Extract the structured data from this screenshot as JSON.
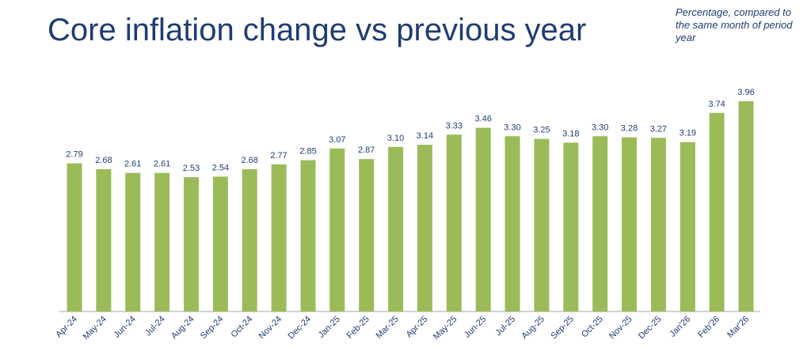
{
  "title": "Core inflation change vs previous year",
  "note": "Percentage, compared to the same month of period year",
  "colors": {
    "bar": "#9bbb59",
    "text": "#1f3c73",
    "axis": "#a6a6a6"
  },
  "chart_data": {
    "type": "bar",
    "title": "Core inflation change vs previous year",
    "categories": [
      "Apr-24",
      "May-24",
      "Jun-24",
      "Jul-24",
      "Aug-24",
      "Sep-24",
      "Oct-24",
      "Nov-24",
      "Dec-24",
      "Jan-25",
      "Feb-25",
      "Mar-25",
      "Apr-25",
      "May-25",
      "Jun-25",
      "Jul-25",
      "Aug-25",
      "Sep-25",
      "Oct-25",
      "Nov-25",
      "Dec-25",
      "Jan'26",
      "Feb'26",
      "Mar'26"
    ],
    "values": [
      2.79,
      2.68,
      2.61,
      2.61,
      2.53,
      2.54,
      2.68,
      2.77,
      2.85,
      3.07,
      2.87,
      3.1,
      3.14,
      3.33,
      3.46,
      3.3,
      3.25,
      3.18,
      3.3,
      3.28,
      3.27,
      3.19,
      3.74,
      3.96
    ],
    "value_labels": [
      "2.79",
      "2.68",
      "2.61",
      "2.61",
      "2.53",
      "2.54",
      "2.68",
      "2.77",
      "2.85",
      "3.07",
      "2.87",
      "3.10",
      "3.14",
      "3.33",
      "3.46",
      "3.30",
      "3.25",
      "3.18",
      "3.30",
      "3.28",
      "3.27",
      "3.19",
      "3.74",
      "3.96"
    ],
    "ylim": [
      0,
      3.96
    ],
    "grid": false,
    "legend": "none"
  }
}
